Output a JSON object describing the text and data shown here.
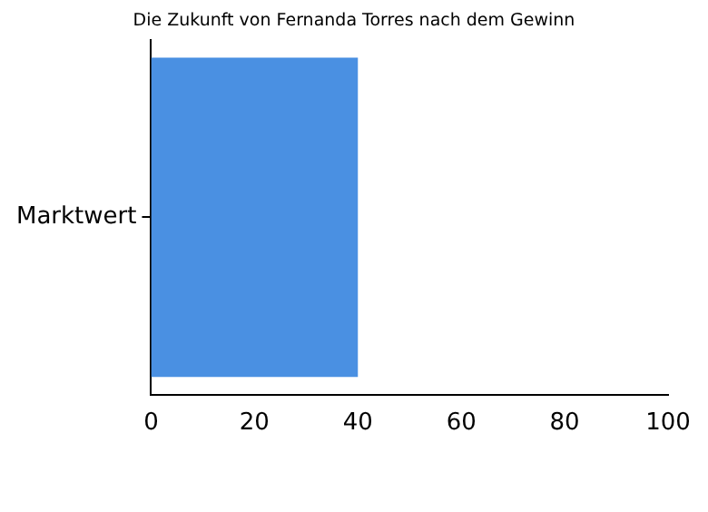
{
  "chart_data": {
    "type": "bar",
    "orientation": "horizontal",
    "title": "Die Zukunft von Fernanda Torres nach dem Gewinn",
    "categories": [
      "Marktwert"
    ],
    "values": [
      40
    ],
    "color": "#4a90e2",
    "xlim": [
      0,
      100
    ],
    "xticks": [
      0,
      20,
      40,
      60,
      80,
      100
    ],
    "grid": false,
    "legend": false
  }
}
